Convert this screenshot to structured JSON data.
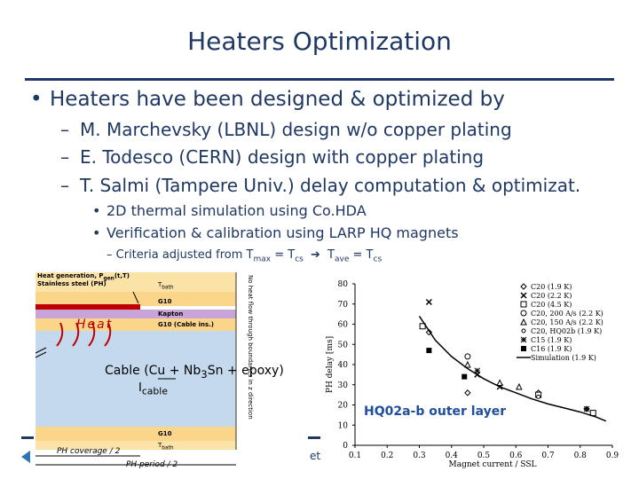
{
  "title": "Heaters Optimization",
  "bullet_main": "Heaters have been designed & optimized by",
  "subs": [
    "M. Marchevsky (LBNL) design w/o copper plating",
    "E. Todesco (CERN) design with copper plating",
    "T. Salmi (Tampere Univ.) delay computation & optimizat."
  ],
  "subsubs": [
    "2D thermal simulation using Co.HDA",
    "Verification & calibration using LARP HQ magnets"
  ],
  "criteria": {
    "text": "Criteria adjusted from",
    "t_max": "T",
    "t_max_sub": "max",
    "eq1": "= T",
    "cs1": "cs",
    "t_ave": "T",
    "t_ave_sub": "ave",
    "eq2": "= T",
    "cs2": "cs"
  },
  "figure": {
    "heat_element": "Heat generation, P",
    "heat_element_sub": "gen",
    "heat_element_args": "(t,T)",
    "stainless": "Stainless steel (PH)",
    "t_bath_top": "T",
    "t_bath_top_sub": "bath",
    "g10_top": "G10",
    "kapton": "Kapton",
    "g10_cable": "G10 (Cable ins.)",
    "heat": "Heat",
    "cable": "Cable (Cu + Nb",
    "cable_sub": "3",
    "cable_rest": "Sn + epoxy)",
    "i_cable": "I",
    "i_cable_sub": "cable",
    "no_heat_flow": "No heat flow through boundaries in z direction",
    "g10_bottom": "G10",
    "t_bath_bottom": "T",
    "t_bath_bottom_sub": "bath",
    "ph_coverage": "PH coverage / 2",
    "ph_period": "PH period / 2",
    "fragment": "et"
  },
  "chart_data": {
    "type": "scatter",
    "xlabel": "Magnet current / SSL",
    "ylabel": "PH delay [ms]",
    "xlim": [
      0.1,
      0.9
    ],
    "ylim": [
      0,
      80
    ],
    "xticks": [
      0.1,
      0.2,
      0.3,
      0.4,
      0.5,
      0.6,
      0.7,
      0.8,
      0.9
    ],
    "yticks": [
      0,
      10,
      20,
      30,
      40,
      50,
      60,
      70,
      80
    ],
    "annotation": "HQ02a-b outer layer",
    "legend_position": "top-right",
    "series": [
      {
        "name": "C20 (1.9 K)",
        "marker": "diamond",
        "points": [
          [
            0.33,
            56
          ],
          [
            0.45,
            26
          ],
          [
            0.55,
            30
          ],
          [
            0.67,
            26
          ],
          [
            0.82,
            18
          ]
        ]
      },
      {
        "name": "C20 (2.2 K)",
        "marker": "x",
        "points": [
          [
            0.33,
            71
          ],
          [
            0.48,
            35
          ],
          [
            0.55,
            29
          ]
        ]
      },
      {
        "name": "C20 (4.5 K)",
        "marker": "square",
        "points": [
          [
            0.31,
            59
          ],
          [
            0.67,
            25
          ],
          [
            0.84,
            16
          ]
        ]
      },
      {
        "name": "C20, 200 A/s (2.2 K)",
        "marker": "circle",
        "points": [
          [
            0.45,
            44
          ]
        ]
      },
      {
        "name": "C20, 150 A/s (2.2 K)",
        "marker": "triangle",
        "points": [
          [
            0.45,
            40
          ],
          [
            0.55,
            31
          ],
          [
            0.61,
            29
          ]
        ]
      },
      {
        "name": "C20, HQ02b (1.9 K)",
        "marker": "circle-small",
        "points": [
          [
            0.67,
            24
          ]
        ]
      },
      {
        "name": "C15 (1.9 K)",
        "marker": "asterisk",
        "points": [
          [
            0.48,
            37
          ],
          [
            0.82,
            18
          ]
        ]
      },
      {
        "name": "C16 (1.9 K)",
        "marker": "filled-square",
        "points": [
          [
            0.33,
            47
          ],
          [
            0.44,
            34
          ]
        ]
      },
      {
        "name": "Simulation (1.9 K)",
        "marker": "line",
        "points": [
          [
            0.3,
            64
          ],
          [
            0.35,
            52
          ],
          [
            0.4,
            44
          ],
          [
            0.45,
            38
          ],
          [
            0.5,
            33
          ],
          [
            0.55,
            29
          ],
          [
            0.6,
            26
          ],
          [
            0.65,
            23
          ],
          [
            0.7,
            20.5
          ],
          [
            0.75,
            18.5
          ],
          [
            0.8,
            16.5
          ],
          [
            0.85,
            14
          ],
          [
            0.88,
            12
          ]
        ]
      }
    ]
  }
}
